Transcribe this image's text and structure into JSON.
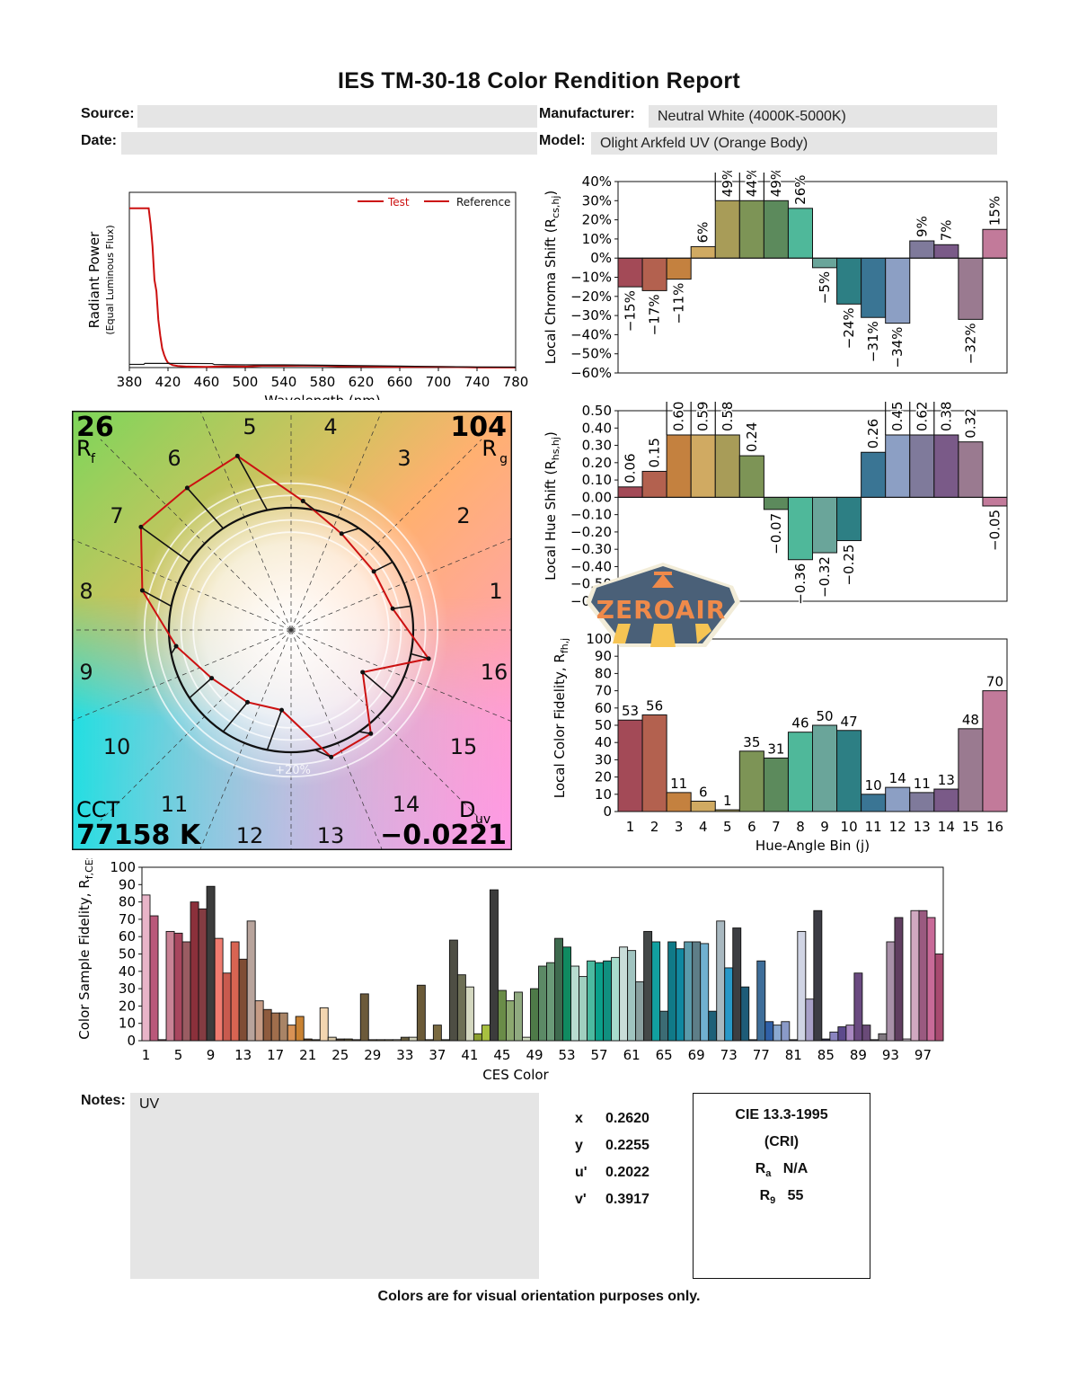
{
  "report": {
    "title": "IES TM-30-18 Color Rendition Report",
    "source_label": "Source:",
    "source_value": "",
    "date_label": "Date:",
    "date_value": "",
    "manufacturer_label": "Manufacturer:",
    "manufacturer_value": "Neutral White (4000K-5000K)",
    "model_label": "Model:",
    "model_value": "Olight Arkfeld UV (Orange Body)",
    "notes_label": "Notes:",
    "notes_value": "UV",
    "footer": "Colors are for visual orientation purposes only.",
    "watermark": "ZEROAIR"
  },
  "chromaticity": [
    {
      "label": "x",
      "value": "0.2620"
    },
    {
      "label": "y",
      "value": "0.2255"
    },
    {
      "label": "u'",
      "value": "0.2022"
    },
    {
      "label": "v'",
      "value": "0.3917"
    }
  ],
  "cri": {
    "title": "CIE 13.3-1995",
    "subtitle": "(CRI)",
    "ra_label": "R",
    "ra_sub": "a",
    "ra_value": "N/A",
    "r9_label": "R",
    "r9_sub": "9",
    "r9_value": "55"
  },
  "vector_graphic": {
    "rf_value": "26",
    "rf_label": "R",
    "rf_sub": "f",
    "rg_value": "104",
    "rg_label": "R",
    "rg_sub": "g",
    "cct_label": "CCT",
    "cct_value": "77158 K",
    "duv_label": "D",
    "duv_sub": "uv",
    "duv_value": "-0.0221",
    "ring_label": "+20%",
    "bin_labels": [
      "1",
      "2",
      "3",
      "4",
      "5",
      "6",
      "7",
      "8",
      "9",
      "10",
      "11",
      "12",
      "13",
      "14",
      "15",
      "16"
    ]
  },
  "chart_data": [
    {
      "id": "spd",
      "type": "line",
      "title": "",
      "xlabel": "Wavelength (nm)",
      "ylabel": "Radiant Power",
      "ylabel2": "(Equal Luminous Flux)",
      "xlim": [
        380,
        780
      ],
      "ylim": [
        0,
        1.1
      ],
      "xticks": [
        380,
        420,
        460,
        500,
        540,
        580,
        620,
        660,
        700,
        740,
        780
      ],
      "legend": [
        "Test",
        "Reference"
      ],
      "legend_position": "top-right",
      "series": [
        {
          "name": "Test",
          "color": "#cc1111",
          "x": [
            380,
            385,
            390,
            395,
            400,
            402,
            404,
            406,
            408,
            410,
            412,
            414,
            416,
            418,
            420,
            425,
            430,
            440,
            460,
            480,
            500,
            520,
            540,
            560,
            580,
            600,
            620,
            640,
            660,
            680,
            700,
            720,
            730,
            740,
            780
          ],
          "y": [
            1.0,
            1.0,
            1.0,
            1.0,
            1.0,
            0.9,
            0.76,
            0.55,
            0.48,
            0.3,
            0.2,
            0.12,
            0.08,
            0.05,
            0.03,
            0.015,
            0.01,
            0.006,
            0.004,
            0.008,
            0.006,
            0.012,
            0.011,
            0.012,
            0.011,
            0.008,
            0.007,
            0.005,
            0.004,
            0.004,
            0.004,
            0.003,
            0.002,
            0.001,
            0.001
          ]
        },
        {
          "name": "Reference",
          "color": "#111111",
          "x": [
            380,
            395,
            396,
            420,
            466,
            468,
            500,
            540,
            580,
            620,
            660,
            700,
            740,
            780
          ],
          "y": [
            0.02,
            0.02,
            0.026,
            0.026,
            0.025,
            0.019,
            0.017,
            0.017,
            0.015,
            0.012,
            0.009,
            0.006,
            0.004,
            0.003
          ]
        }
      ]
    },
    {
      "id": "chroma-shift",
      "type": "bar",
      "title": "",
      "ylabel": "Local Chroma Shift (R_cs,hj)",
      "ylim": [
        -60,
        40
      ],
      "yticks": [
        40,
        30,
        20,
        10,
        0,
        -10,
        -20,
        -30,
        -40,
        -50,
        -60
      ],
      "categories": [
        "1",
        "2",
        "3",
        "4",
        "5",
        "6",
        "7",
        "8",
        "9",
        "10",
        "11",
        "12",
        "13",
        "14",
        "15",
        "16"
      ],
      "values": [
        -15,
        -17,
        -11,
        6,
        49,
        44,
        49,
        26,
        -5,
        -24,
        -31,
        -34,
        9,
        7,
        -32,
        15
      ],
      "labels": [
        "-15%",
        "-17%",
        "-11%",
        "6%",
        "49%",
        "44%",
        "49%",
        "26%",
        "-5%",
        "-24%",
        "-31%",
        "-34%",
        "9%",
        "7%",
        "-32%",
        "15%"
      ],
      "clip": 30
    },
    {
      "id": "hue-shift",
      "type": "bar",
      "title": "",
      "ylabel": "Local Hue Shift (R_hs,hj)",
      "ylim": [
        -0.6,
        0.5
      ],
      "yticks": [
        "0.50",
        "0.40",
        "0.30",
        "0.20",
        "0.10",
        "0.00",
        "-0.10",
        "-0.20",
        "-0.30",
        "-0.40",
        "-0.50",
        "-0.60"
      ],
      "categories": [
        "1",
        "2",
        "3",
        "4",
        "5",
        "6",
        "7",
        "8",
        "9",
        "10",
        "11",
        "12",
        "13",
        "14",
        "15",
        "16"
      ],
      "values": [
        0.06,
        0.15,
        0.6,
        0.59,
        0.58,
        0.24,
        -0.07,
        -0.36,
        -0.32,
        -0.25,
        0.26,
        0.45,
        0.62,
        0.38,
        0.32,
        -0.05
      ],
      "labels": [
        "0.06",
        "0.15",
        "0.60",
        "0.59",
        "0.58",
        "0.24",
        "-0.07",
        "-0.36",
        "-0.32",
        "-0.25",
        "0.26",
        "0.45",
        "0.62",
        "0.38",
        "0.32",
        "-0.05"
      ],
      "clip": 0.36
    },
    {
      "id": "local-fidelity",
      "type": "bar",
      "title": "",
      "xlabel": "Hue-Angle Bin (j)",
      "ylabel": "Local Color Fidelity, R_fh,j",
      "ylim": [
        0,
        100
      ],
      "yticks": [
        0,
        10,
        20,
        30,
        40,
        50,
        60,
        70,
        80,
        90,
        100
      ],
      "categories": [
        "1",
        "2",
        "3",
        "4",
        "5",
        "6",
        "7",
        "8",
        "9",
        "10",
        "11",
        "12",
        "13",
        "14",
        "15",
        "16"
      ],
      "values": [
        53,
        56,
        11,
        6,
        1,
        35,
        31,
        46,
        50,
        47,
        10,
        14,
        11,
        13,
        48,
        70
      ]
    },
    {
      "id": "ces-fidelity",
      "type": "bar",
      "title": "",
      "xlabel": "CES Color",
      "ylabel": "Color Sample Fidelity, R_f,CESi",
      "ylim": [
        0,
        100
      ],
      "yticks": [
        0,
        10,
        20,
        30,
        40,
        50,
        60,
        70,
        80,
        90,
        100
      ],
      "xticks": [
        "1",
        "5",
        "9",
        "13",
        "17",
        "21",
        "25",
        "29",
        "33",
        "37",
        "41",
        "45",
        "49",
        "53",
        "57",
        "61",
        "65",
        "69",
        "73",
        "77",
        "81",
        "85",
        "89",
        "93",
        "97"
      ],
      "values": [
        84,
        72,
        0,
        63,
        62,
        57,
        80,
        76,
        89,
        59,
        39,
        57,
        47,
        69,
        23,
        18,
        16,
        16,
        9,
        14,
        1,
        0,
        19,
        2,
        1,
        1,
        0,
        27,
        0,
        0,
        0,
        0,
        2,
        2,
        32,
        0,
        9,
        0,
        58,
        38,
        31,
        4,
        9,
        87,
        29,
        23,
        28,
        2,
        30,
        43,
        45,
        59,
        54,
        43,
        37,
        46,
        45,
        46,
        48,
        54,
        52,
        34,
        63,
        57,
        17,
        57,
        53,
        57,
        57,
        56,
        17,
        69,
        42,
        65,
        31,
        0,
        46,
        11,
        9,
        11,
        0,
        63,
        24,
        75,
        1,
        5,
        8,
        9,
        39,
        9,
        0,
        4,
        57,
        71,
        1,
        75,
        75,
        71,
        50
      ],
      "colors": [
        "#e8b4c8",
        "#b9587a",
        "#8e3d55",
        "#c98295",
        "#a8465e",
        "#9a5c62",
        "#8b303b",
        "#843c42",
        "#3c3c3c",
        "#f07c70",
        "#c85a4e",
        "#d86452",
        "#7f4d35",
        "#b8a49c",
        "#c69c86",
        "#8e5b3e",
        "#a06e4c",
        "#a98466",
        "#d89255",
        "#c98232",
        "#5a3c1e",
        "#5a4a2a",
        "#f2d5b0",
        "#d8c8a8",
        "#504030",
        "#5c5030",
        "#6c5a40",
        "#6c5a3a",
        "#7c6a40",
        "#8a7a50",
        "#a09060",
        "#d8d0b0",
        "#6a6040",
        "#d0d0b8",
        "#6a5a38",
        "#807040",
        "#7a6a40",
        "#505a40",
        "#4e4e44",
        "#6e7056",
        "#d4d8c0",
        "#8ca030",
        "#a8c040",
        "#3c3c3c",
        "#6a8c48",
        "#8ca870",
        "#90aa80",
        "#d0dcc0",
        "#4e7a48",
        "#5c8a66",
        "#6a9a78",
        "#3e6a4e",
        "#108a60",
        "#b8dcd0",
        "#a0d0c0",
        "#4cbaa0",
        "#0aa08a",
        "#109080",
        "#a8dccc",
        "#c8dcd8",
        "#a0c4c0",
        "#8aa0a0",
        "#444848",
        "#12a0a0",
        "#3c6c74",
        "#107a88",
        "#1088a0",
        "#5a9aaa",
        "#5e7e88",
        "#70b0d0",
        "#1e6078",
        "#a8b8c0",
        "#2898c8",
        "#3c3e42",
        "#1e5c78",
        "#2a4868",
        "#3e6e9a",
        "#3060a8",
        "#8aa8d0",
        "#8a9ac8",
        "#303050",
        "#d0d4e4",
        "#a8a0c8",
        "#3c3c44",
        "#282848",
        "#8a84c0",
        "#5c4a8c",
        "#a888c0",
        "#6a4a80",
        "#6a4a78",
        "#605068",
        "#807880",
        "#a890a8",
        "#603e60",
        "#d8c8d8",
        "#d0a8c0",
        "#9a5a80",
        "#c86a98",
        "#a84a70"
      ]
    }
  ]
}
